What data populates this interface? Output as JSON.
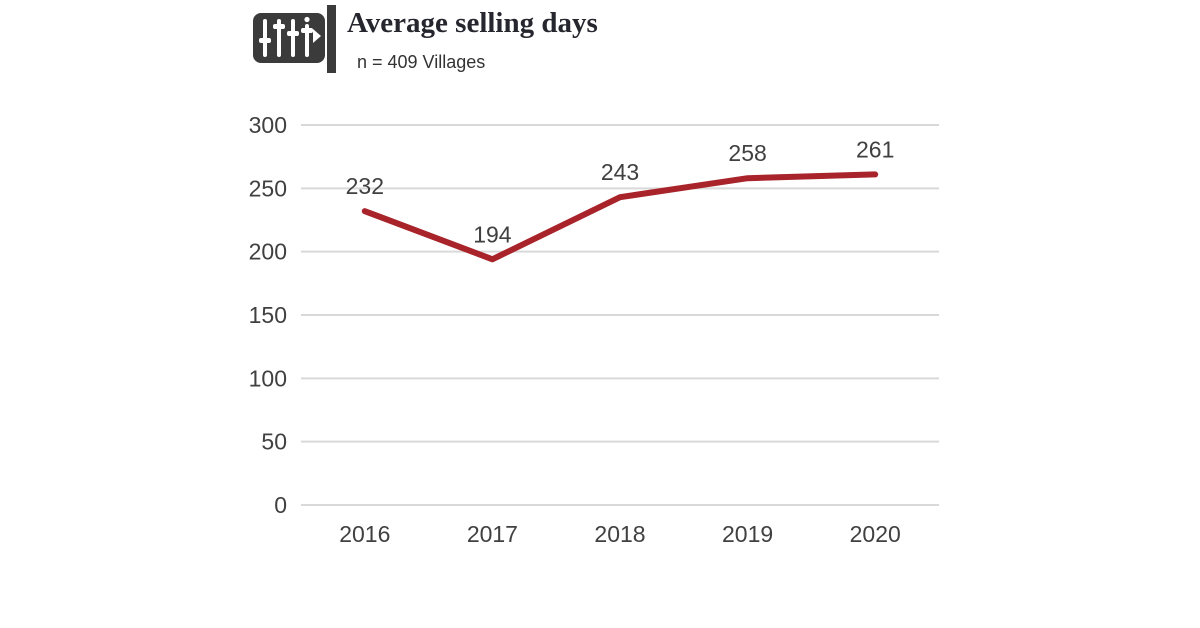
{
  "header": {
    "title": "Average selling days",
    "subtitle": "n = 409 Villages",
    "icon": "equalizer-play-icon"
  },
  "colors": {
    "line": "#a8232a",
    "grid": "#d9d9d9",
    "axis_text": "#404040",
    "title_text": "#26262e",
    "icon_bg": "#3b3b3b"
  },
  "chart_data": {
    "type": "line",
    "categories": [
      "2016",
      "2017",
      "2018",
      "2019",
      "2020"
    ],
    "series": [
      {
        "name": "Average selling days",
        "values": [
          232,
          194,
          243,
          258,
          261
        ]
      }
    ],
    "title": "Average selling days",
    "subtitle": "n = 409 Villages",
    "xlabel": "",
    "ylabel": "",
    "ylim": [
      0,
      300
    ],
    "yticks": [
      0,
      50,
      100,
      150,
      200,
      250,
      300
    ],
    "grid": "horizontal",
    "legend": "none",
    "data_labels": true
  }
}
